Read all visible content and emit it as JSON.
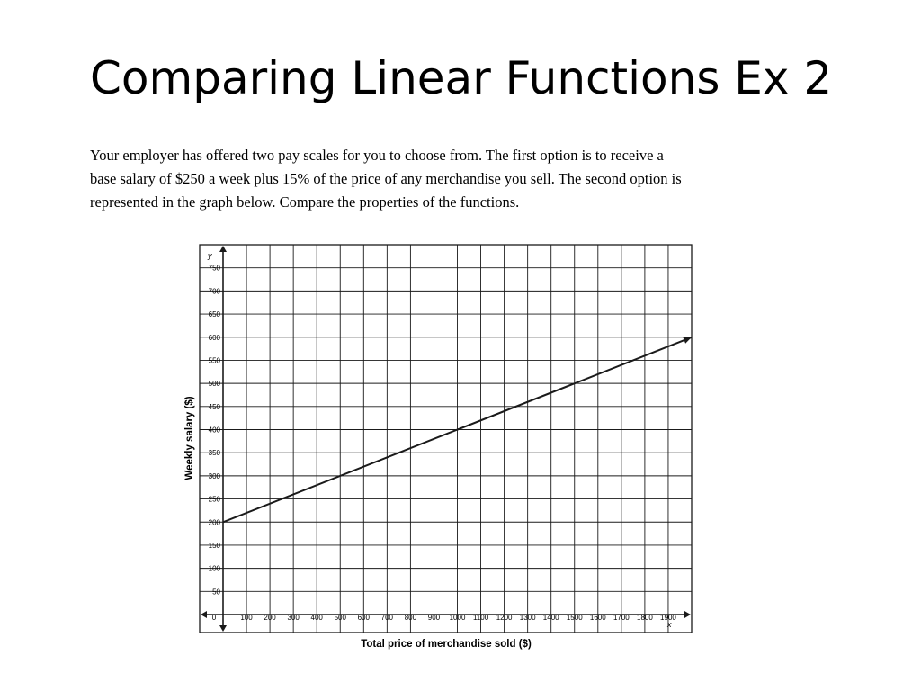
{
  "slide": {
    "title": "Comparing Linear Functions Ex 2",
    "problem_lines": [
      "Your employer has offered two pay scales for you to choose from. The first option is to receive a",
      "base salary of $250 a week plus 15% of the price of any merchandise you sell. The second option is",
      "represented in the graph below. Compare the properties of the functions."
    ]
  },
  "chart_data": {
    "type": "line",
    "title": "",
    "xlabel": "Total price of merchandise sold ($)",
    "ylabel": "Weekly salary ($)",
    "x_axis_letter": "x",
    "y_axis_letter": "y",
    "origin_label": "0",
    "xlim": [
      0,
      2000
    ],
    "ylim": [
      0,
      800
    ],
    "x_ticks": [
      100,
      200,
      300,
      400,
      500,
      600,
      700,
      800,
      900,
      1000,
      1100,
      1200,
      1300,
      1400,
      1500,
      1600,
      1700,
      1800,
      1900
    ],
    "y_ticks": [
      50,
      100,
      150,
      200,
      250,
      300,
      350,
      400,
      450,
      500,
      550,
      600,
      650,
      700,
      750
    ],
    "grid": true,
    "series": [
      {
        "x": [
          0,
          2000
        ],
        "y": [
          200,
          600
        ]
      }
    ],
    "colors": {
      "line": "#1a1a1a",
      "grid": "#1a1a1a"
    }
  }
}
